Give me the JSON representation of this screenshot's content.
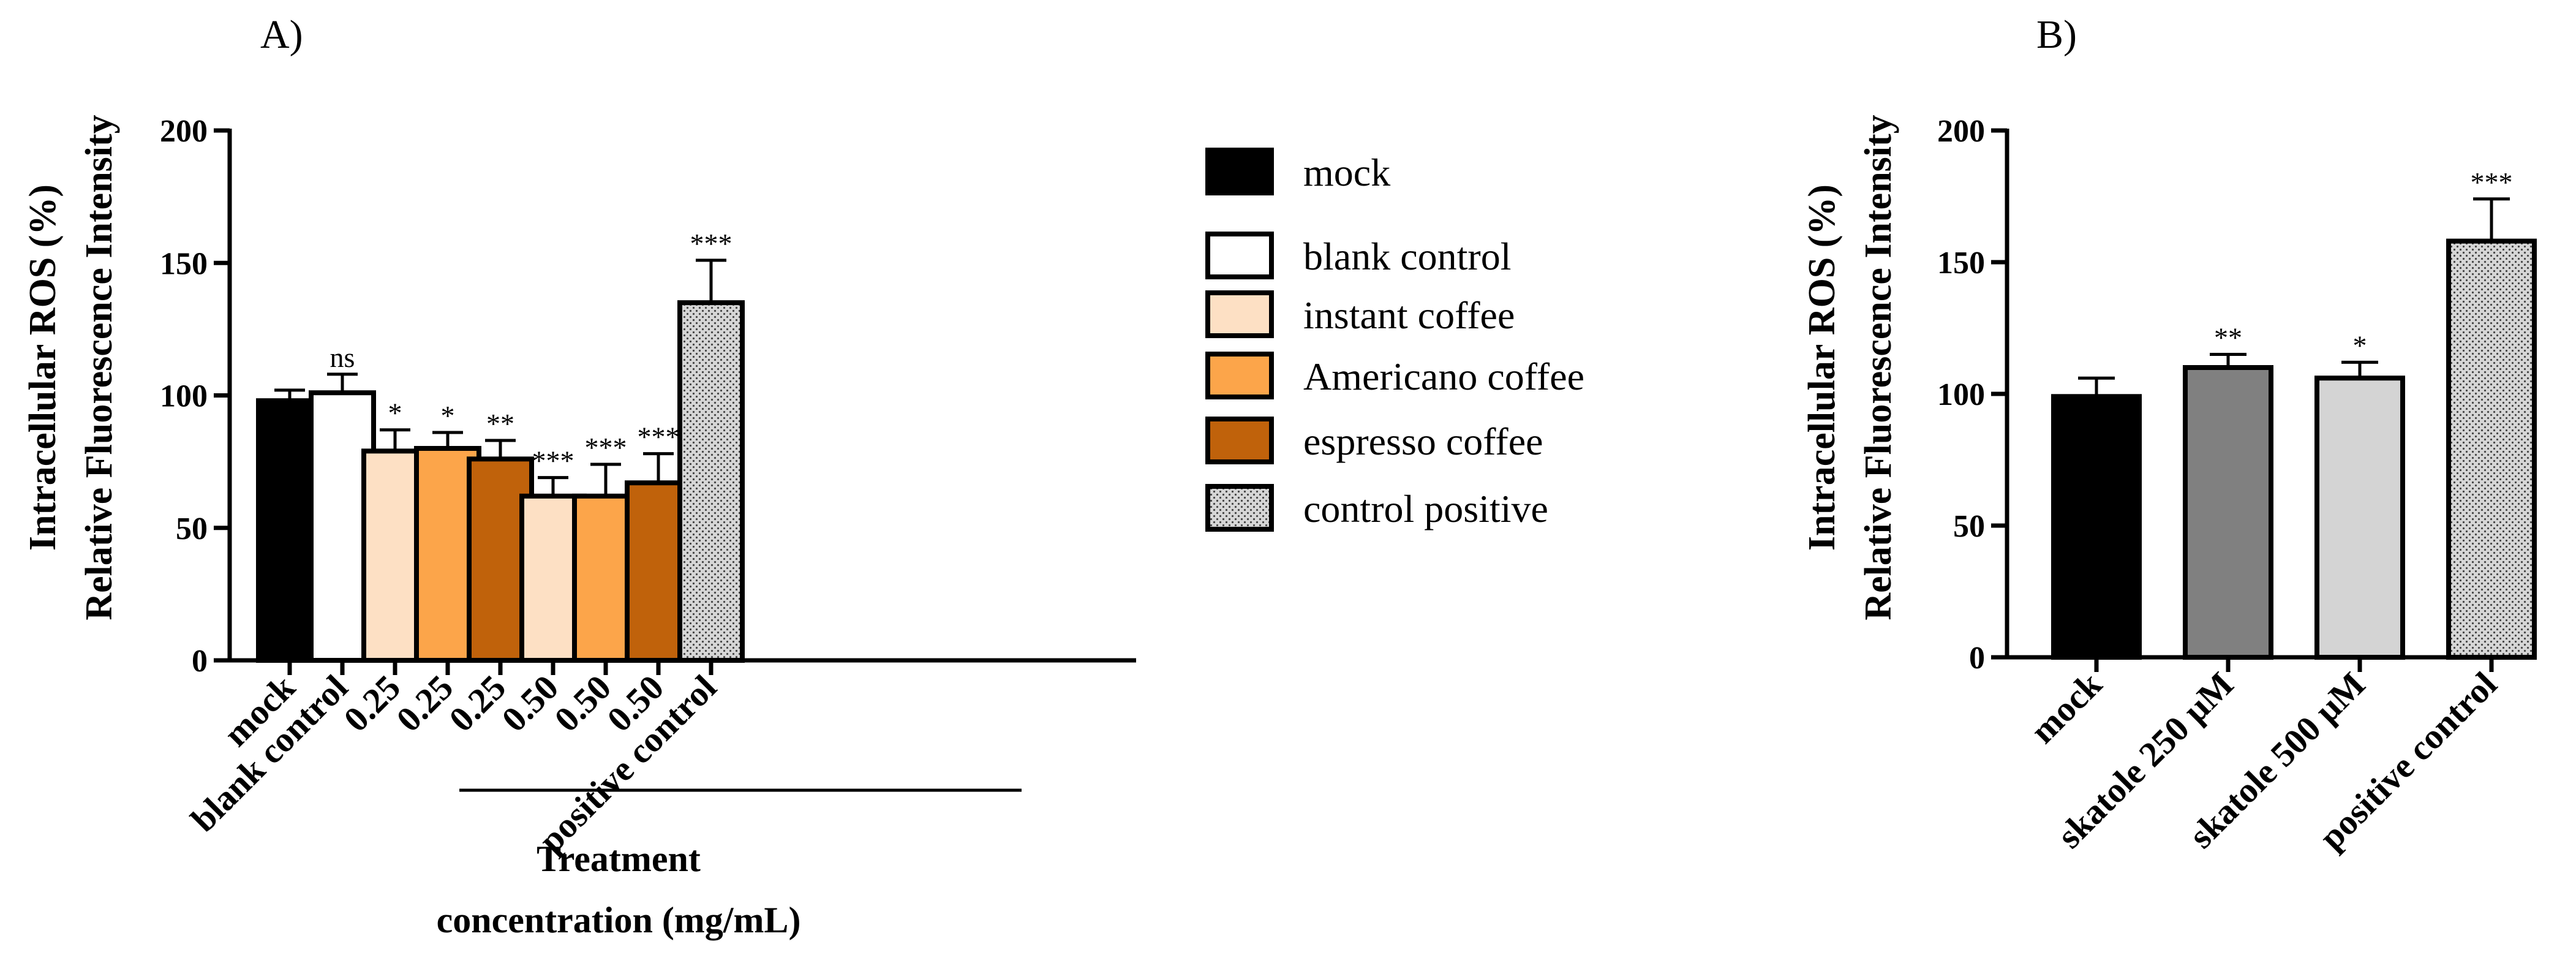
{
  "colors": {
    "mock": "#000000",
    "blank_control": "#ffffff",
    "instant_coffee": "#fde0c4",
    "americano_coffee": "#fca54a",
    "espresso_coffee": "#c0620b",
    "control_positive": "#d6d6d6",
    "skatole_250": "#808080",
    "skatole_500": "#d4d4d4"
  },
  "legend": {
    "items": [
      {
        "label": "mock",
        "color": "#000000",
        "pattern": false
      },
      {
        "label": "blank control",
        "color": "#ffffff",
        "pattern": false
      },
      {
        "label": "instant coffee",
        "color": "#fde0c4",
        "pattern": false
      },
      {
        "label": "Americano coffee",
        "color": "#fca54a",
        "pattern": false
      },
      {
        "label": "espresso coffee",
        "color": "#c0620b",
        "pattern": false
      },
      {
        "label": "control positive",
        "color": "#d6d6d6",
        "pattern": true
      }
    ]
  },
  "chart_data": [
    {
      "type": "bar",
      "panel_label": "A)",
      "ylabel_line1": "Intracellular ROS (%)",
      "ylabel_line2": "Relative Fluorescence Intensity",
      "ylim": [
        0,
        200
      ],
      "yticks": [
        0,
        50,
        100,
        150,
        200
      ],
      "xgroup_title_line1": "Treatment",
      "xgroup_title_line2": "concentration (mg/mL)",
      "categories": [
        "mock",
        "blank control",
        "0.25",
        "0.25",
        "0.25",
        "0.50",
        "0.50",
        "0.50",
        "positive control"
      ],
      "values": [
        98,
        101,
        79,
        80,
        76,
        62,
        62,
        67,
        135
      ],
      "errors": [
        4,
        7,
        8,
        6,
        7,
        7,
        12,
        11,
        16
      ],
      "significance": [
        "",
        "ns",
        "*",
        "*",
        "**",
        "***",
        "***",
        "***",
        "***"
      ],
      "bar_colors": [
        "#000000",
        "#ffffff",
        "#fde0c4",
        "#fca54a",
        "#c0620b",
        "#fde0c4",
        "#fca54a",
        "#c0620b",
        "#d6d6d6"
      ],
      "bar_patterns": [
        false,
        false,
        false,
        false,
        false,
        false,
        false,
        false,
        true
      ]
    },
    {
      "type": "bar",
      "panel_label": "B)",
      "ylabel_line1": "Intracellular ROS (%)",
      "ylabel_line2": "Relative Fluorescence Intensity",
      "ylim": [
        0,
        200
      ],
      "yticks": [
        0,
        50,
        100,
        150,
        200
      ],
      "categories": [
        "mock",
        "skatole 250 μM",
        "skatole 500 μM",
        "positive control"
      ],
      "values": [
        99,
        110,
        106,
        158
      ],
      "errors": [
        7,
        5,
        6,
        16
      ],
      "significance": [
        "",
        "**",
        "*",
        "***"
      ],
      "bar_colors": [
        "#000000",
        "#808080",
        "#d4d4d4",
        "#d6d6d6"
      ],
      "bar_patterns": [
        false,
        false,
        false,
        true
      ]
    }
  ]
}
